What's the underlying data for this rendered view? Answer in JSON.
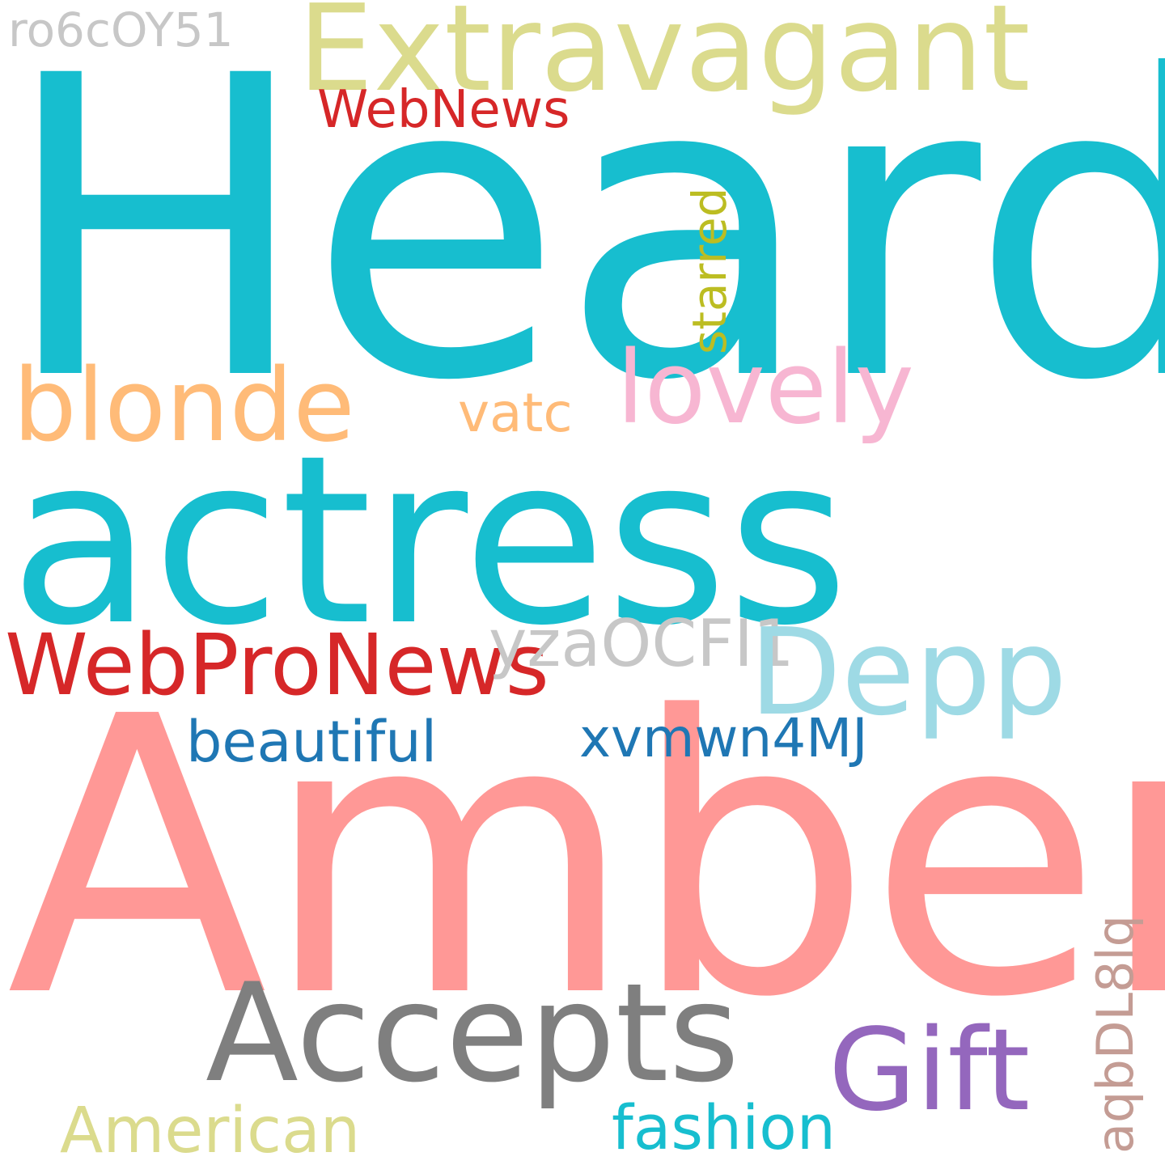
{
  "cloud": {
    "background": "#ffffff",
    "words": [
      {
        "id": "heard",
        "text": "Heard",
        "color": "#17becf"
      },
      {
        "id": "actress",
        "text": "actress",
        "color": "#17becf"
      },
      {
        "id": "amber",
        "text": "Amber",
        "color": "#ff9896"
      },
      {
        "id": "extravagant",
        "text": "Extravagant",
        "color": "#dbdb8d"
      },
      {
        "id": "ro6c0y51",
        "text": "ro6cOY51",
        "color": "#c7c7c7"
      },
      {
        "id": "webnews",
        "text": "WebNews",
        "color": "#d62728"
      },
      {
        "id": "starred",
        "text": "starred",
        "color": "#bcbd22"
      },
      {
        "id": "blonde",
        "text": "blonde",
        "color": "#ffbb78"
      },
      {
        "id": "lovely",
        "text": "lovely",
        "color": "#f7b6d2"
      },
      {
        "id": "vatc",
        "text": "vatc",
        "color": "#ffbb78"
      },
      {
        "id": "webpronews",
        "text": "WebProNews",
        "color": "#d62728"
      },
      {
        "id": "yzaocfi1",
        "text": "yzaOCFI1",
        "color": "#c7c7c7"
      },
      {
        "id": "depp",
        "text": "Depp",
        "color": "#9edae5"
      },
      {
        "id": "beautiful",
        "text": "beautiful",
        "color": "#1f77b4"
      },
      {
        "id": "xvmwn4mj",
        "text": "xvmwn4MJ",
        "color": "#1f77b4"
      },
      {
        "id": "accepts",
        "text": "Accepts",
        "color": "#7f7f7f"
      },
      {
        "id": "gift",
        "text": "Gift",
        "color": "#9467bd"
      },
      {
        "id": "aqbdl8lq",
        "text": "aqbDL8lq",
        "color": "#c49c94"
      },
      {
        "id": "american",
        "text": "American",
        "color": "#dbdb8d"
      },
      {
        "id": "fashion",
        "text": "fashion",
        "color": "#17becf"
      }
    ]
  }
}
